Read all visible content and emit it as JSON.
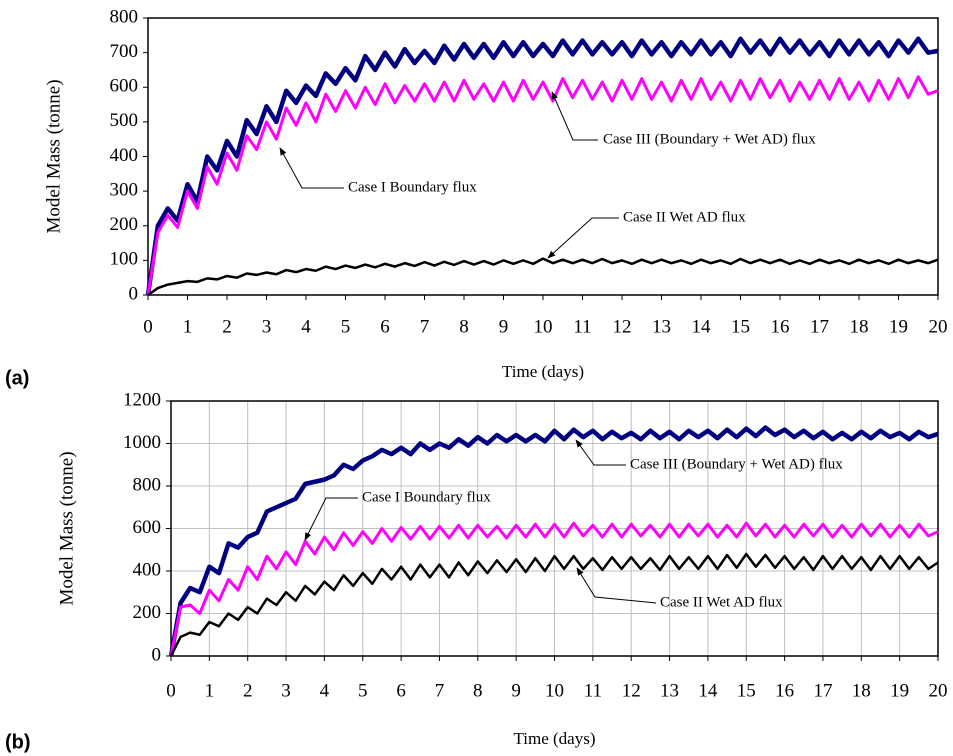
{
  "chart_data": [
    {
      "type": "line",
      "label": "(a)",
      "x_label": "Time (days)",
      "y_label": "Model Mass (tonne)",
      "x": [
        0,
        0.25,
        0.5,
        0.75,
        1,
        1.25,
        1.5,
        1.75,
        2,
        2.25,
        2.5,
        2.75,
        3,
        3.25,
        3.5,
        3.75,
        4,
        4.25,
        4.5,
        4.75,
        5,
        5.25,
        5.5,
        5.75,
        6,
        6.25,
        6.5,
        6.75,
        7,
        7.25,
        7.5,
        7.75,
        8,
        8.25,
        8.5,
        8.75,
        9,
        9.25,
        9.5,
        9.75,
        10,
        10.25,
        10.5,
        10.75,
        11,
        11.25,
        11.5,
        11.75,
        12,
        12.25,
        12.5,
        12.75,
        13,
        13.25,
        13.5,
        13.75,
        14,
        14.25,
        14.5,
        14.75,
        15,
        15.25,
        15.5,
        15.75,
        16,
        16.25,
        16.5,
        16.75,
        17,
        17.25,
        17.5,
        17.75,
        18,
        18.25,
        18.5,
        18.75,
        19,
        19.25,
        19.5,
        19.75,
        20
      ],
      "xlim": [
        0,
        20
      ],
      "xticks": [
        0,
        1,
        2,
        3,
        4,
        5,
        6,
        7,
        8,
        9,
        10,
        11,
        12,
        13,
        14,
        15,
        16,
        17,
        18,
        19,
        20
      ],
      "ylim": [
        0,
        800
      ],
      "yticks": [
        0,
        100,
        200,
        300,
        400,
        500,
        600,
        700,
        800
      ],
      "grid": false,
      "series": [
        {
          "name": "Case III (Boundary + Wet AD) flux",
          "color": "#000080",
          "values": [
            0,
            200,
            250,
            215,
            320,
            270,
            400,
            360,
            445,
            400,
            505,
            465,
            545,
            500,
            590,
            555,
            605,
            575,
            640,
            610,
            655,
            620,
            690,
            650,
            700,
            660,
            710,
            670,
            705,
            670,
            720,
            680,
            725,
            685,
            725,
            685,
            730,
            690,
            730,
            690,
            725,
            690,
            735,
            695,
            735,
            695,
            730,
            695,
            730,
            690,
            735,
            695,
            730,
            690,
            730,
            695,
            735,
            695,
            730,
            690,
            740,
            700,
            735,
            695,
            740,
            700,
            735,
            695,
            730,
            690,
            735,
            695,
            735,
            695,
            730,
            690,
            735,
            700,
            740,
            700,
            705
          ]
        },
        {
          "name": "Case I Boundary flux",
          "color": "#ff00ff",
          "values": [
            0,
            180,
            230,
            195,
            300,
            250,
            370,
            320,
            410,
            360,
            460,
            420,
            500,
            450,
            540,
            490,
            555,
            500,
            580,
            530,
            590,
            540,
            600,
            550,
            610,
            555,
            605,
            560,
            610,
            560,
            615,
            560,
            620,
            565,
            610,
            560,
            615,
            560,
            620,
            565,
            615,
            560,
            625,
            570,
            620,
            565,
            615,
            560,
            620,
            565,
            625,
            565,
            615,
            560,
            620,
            565,
            625,
            565,
            615,
            560,
            620,
            565,
            625,
            570,
            620,
            560,
            615,
            565,
            620,
            565,
            625,
            565,
            615,
            560,
            620,
            565,
            625,
            570,
            630,
            580,
            590
          ]
        },
        {
          "name": "Case II Wet AD flux",
          "color": "#000000",
          "values": [
            0,
            20,
            30,
            35,
            40,
            38,
            48,
            45,
            55,
            50,
            62,
            58,
            65,
            60,
            72,
            66,
            75,
            70,
            82,
            75,
            85,
            78,
            88,
            80,
            90,
            82,
            92,
            84,
            95,
            85,
            96,
            87,
            98,
            88,
            98,
            88,
            100,
            90,
            100,
            90,
            105,
            92,
            102,
            92,
            102,
            92,
            104,
            92,
            100,
            90,
            102,
            92,
            102,
            92,
            100,
            90,
            102,
            92,
            100,
            90,
            104,
            92,
            102,
            92,
            102,
            90,
            100,
            90,
            102,
            92,
            100,
            90,
            102,
            92,
            100,
            90,
            102,
            92,
            100,
            92,
            102
          ]
        }
      ]
    },
    {
      "type": "line",
      "label": "(b)",
      "x_label": "Time (days)",
      "y_label": "Model Mass (tonne)",
      "x": [
        0,
        0.25,
        0.5,
        0.75,
        1,
        1.25,
        1.5,
        1.75,
        2,
        2.25,
        2.5,
        2.75,
        3,
        3.25,
        3.5,
        3.75,
        4,
        4.25,
        4.5,
        4.75,
        5,
        5.25,
        5.5,
        5.75,
        6,
        6.25,
        6.5,
        6.75,
        7,
        7.25,
        7.5,
        7.75,
        8,
        8.25,
        8.5,
        8.75,
        9,
        9.25,
        9.5,
        9.75,
        10,
        10.25,
        10.5,
        10.75,
        11,
        11.25,
        11.5,
        11.75,
        12,
        12.25,
        12.5,
        12.75,
        13,
        13.25,
        13.5,
        13.75,
        14,
        14.25,
        14.5,
        14.75,
        15,
        15.25,
        15.5,
        15.75,
        16,
        16.25,
        16.5,
        16.75,
        17,
        17.25,
        17.5,
        17.75,
        18,
        18.25,
        18.5,
        18.75,
        19,
        19.25,
        19.5,
        19.75,
        20
      ],
      "xlim": [
        0,
        20
      ],
      "xticks": [
        0,
        1,
        2,
        3,
        4,
        5,
        6,
        7,
        8,
        9,
        10,
        11,
        12,
        13,
        14,
        15,
        16,
        17,
        18,
        19,
        20
      ],
      "ylim": [
        0,
        1200
      ],
      "yticks": [
        0,
        200,
        400,
        600,
        800,
        1000,
        1200
      ],
      "grid": true,
      "series": [
        {
          "name": "Case III (Boundary + Wet AD) flux",
          "color": "#000080",
          "values": [
            0,
            250,
            320,
            300,
            420,
            390,
            530,
            510,
            560,
            580,
            680,
            700,
            720,
            740,
            810,
            820,
            830,
            850,
            900,
            880,
            920,
            940,
            970,
            950,
            980,
            950,
            1000,
            970,
            1000,
            980,
            1020,
            990,
            1030,
            1000,
            1040,
            1010,
            1040,
            1010,
            1040,
            1010,
            1060,
            1020,
            1065,
            1030,
            1060,
            1020,
            1055,
            1025,
            1050,
            1020,
            1060,
            1025,
            1055,
            1020,
            1060,
            1030,
            1060,
            1025,
            1065,
            1030,
            1070,
            1035,
            1075,
            1040,
            1065,
            1030,
            1060,
            1025,
            1055,
            1020,
            1050,
            1020,
            1055,
            1025,
            1060,
            1030,
            1050,
            1020,
            1055,
            1030,
            1045
          ]
        },
        {
          "name": "Case I Boundary flux",
          "color": "#ff00ff",
          "values": [
            0,
            230,
            240,
            200,
            310,
            260,
            360,
            310,
            420,
            360,
            470,
            410,
            490,
            430,
            540,
            480,
            560,
            500,
            580,
            520,
            585,
            530,
            600,
            540,
            605,
            550,
            610,
            550,
            610,
            555,
            615,
            555,
            615,
            560,
            610,
            555,
            615,
            560,
            620,
            560,
            620,
            560,
            625,
            565,
            615,
            560,
            620,
            560,
            620,
            565,
            615,
            560,
            620,
            560,
            620,
            565,
            620,
            560,
            615,
            560,
            625,
            565,
            620,
            560,
            615,
            560,
            620,
            565,
            620,
            560,
            615,
            560,
            620,
            565,
            620,
            560,
            615,
            560,
            620,
            565,
            585
          ]
        },
        {
          "name": "Case II Wet AD flux",
          "color": "#000000",
          "values": [
            0,
            90,
            110,
            100,
            160,
            140,
            200,
            170,
            230,
            200,
            270,
            240,
            300,
            260,
            330,
            290,
            350,
            310,
            380,
            330,
            390,
            340,
            410,
            360,
            420,
            360,
            430,
            370,
            430,
            370,
            440,
            380,
            445,
            390,
            450,
            395,
            455,
            395,
            460,
            400,
            470,
            410,
            470,
            410,
            460,
            405,
            465,
            410,
            465,
            410,
            460,
            405,
            470,
            410,
            465,
            410,
            470,
            410,
            475,
            415,
            480,
            420,
            475,
            415,
            470,
            410,
            465,
            405,
            470,
            410,
            470,
            410,
            465,
            405,
            470,
            410,
            470,
            410,
            465,
            410,
            440
          ]
        }
      ]
    }
  ]
}
